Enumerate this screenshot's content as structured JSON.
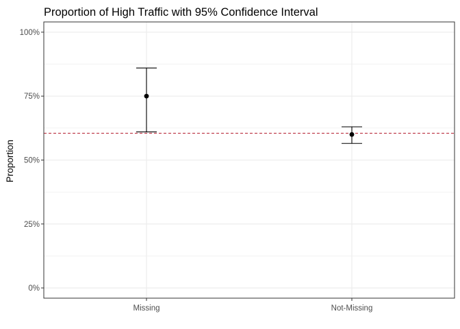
{
  "chart_data": {
    "type": "scatter",
    "title": "Proportion of High Traffic with 95% Confidence Interval",
    "xlabel": "",
    "ylabel": "Proportion",
    "categories": [
      "Missing",
      "Not-Missing"
    ],
    "ylim": [
      -0.04,
      1.04
    ],
    "y_ticks": [
      0,
      0.25,
      0.5,
      0.75,
      1.0
    ],
    "y_tick_labels": [
      "0%",
      "25%",
      "50%",
      "75%",
      "100%"
    ],
    "grid": true,
    "points": [
      {
        "category": "Missing",
        "estimate": 0.75,
        "lower": 0.61,
        "upper": 0.86
      },
      {
        "category": "Not-Missing",
        "estimate": 0.6,
        "lower": 0.565,
        "upper": 0.63
      }
    ],
    "reference_line": {
      "y": 0.605,
      "style": "dashed",
      "color": "#b2182b"
    },
    "colors": {
      "points": "#000000",
      "grid": "#ebebeb",
      "panel_border": "#333333"
    }
  }
}
